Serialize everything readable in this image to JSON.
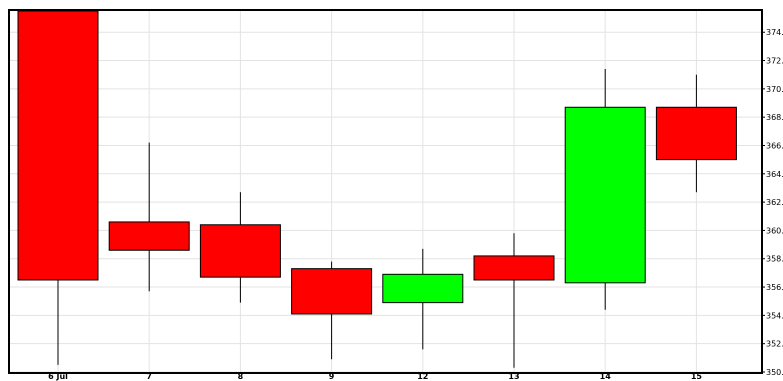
{
  "chart_data": {
    "type": "candlestick",
    "categories": [
      "6 Jul",
      "7",
      "8",
      "9",
      "12",
      "13",
      "14",
      "15"
    ],
    "series": [
      {
        "open": [
          375.5,
          360.6,
          360.4,
          357.3,
          354.9,
          358.2,
          356.3,
          368.7
        ],
        "high": [
          375.5,
          366.2,
          362.7,
          357.8,
          358.7,
          359.8,
          371.4,
          371.0
        ],
        "low": [
          350.5,
          355.7,
          354.9,
          350.9,
          351.6,
          350.3,
          354.4,
          362.7
        ],
        "close": [
          356.5,
          358.6,
          356.7,
          354.1,
          356.9,
          356.5,
          368.7,
          365.0
        ]
      }
    ],
    "ylim": [
      350,
      375.5
    ],
    "yticks": [
      {
        "value": 350,
        "label": "350.0"
      },
      {
        "value": 352,
        "label": "352.0"
      },
      {
        "value": 354,
        "label": "354.0"
      },
      {
        "value": 356,
        "label": "356.0"
      },
      {
        "value": 358,
        "label": "358.0"
      },
      {
        "value": 360,
        "label": "360.0"
      },
      {
        "value": 362,
        "label": "362.0"
      },
      {
        "value": 364,
        "label": "364.0"
      },
      {
        "value": 366,
        "label": "366.0"
      },
      {
        "value": 368,
        "label": "368.0"
      },
      {
        "value": 370,
        "label": "370.0"
      },
      {
        "value": 372,
        "label": "372.0"
      },
      {
        "value": 374,
        "label": "374.0"
      }
    ],
    "grid": true,
    "colors": {
      "up": "#00ff00",
      "down": "#ff0000",
      "grid": "#e3e3e3",
      "wick": "#000000"
    }
  }
}
